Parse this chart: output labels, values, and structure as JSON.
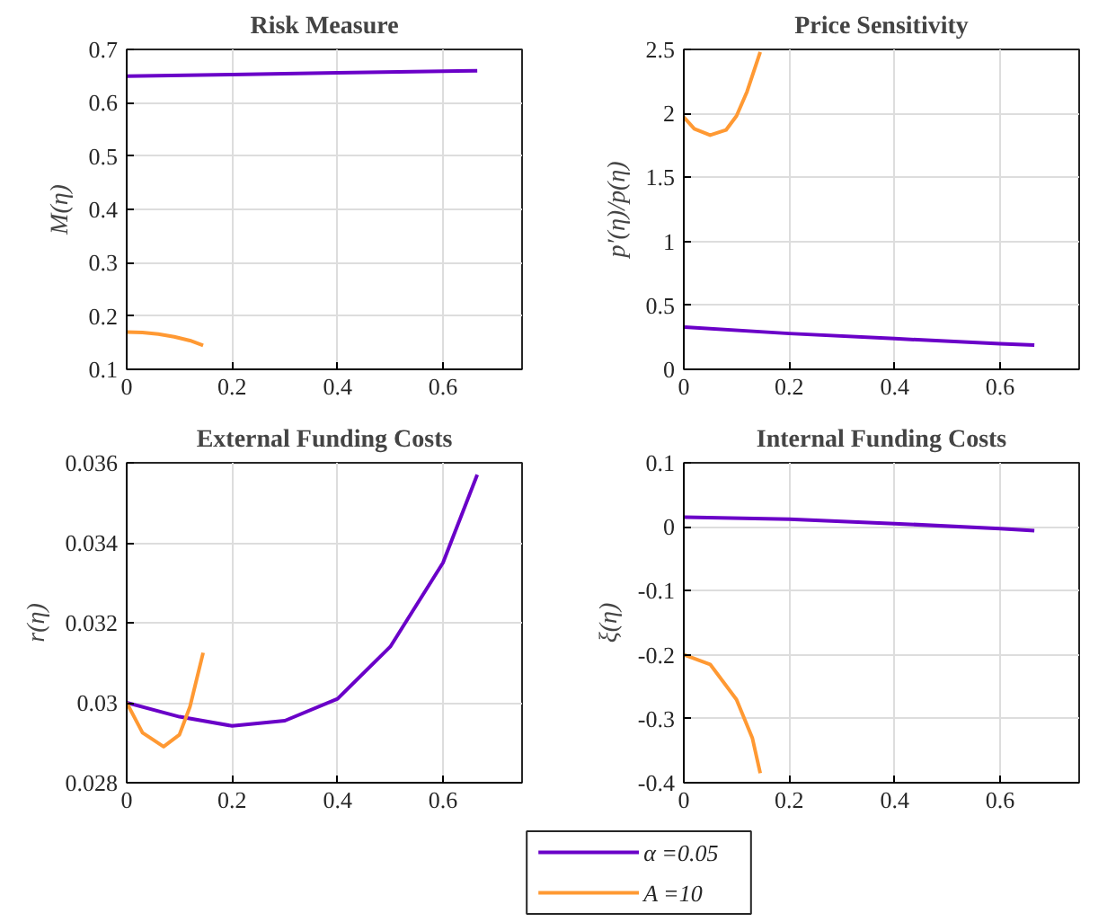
{
  "chart_data": [
    {
      "type": "line",
      "title": "Risk Measure",
      "ylabel": "M(η)",
      "xlim": [
        0,
        0.75
      ],
      "xticks": [
        0,
        0.2,
        0.4,
        0.6
      ],
      "ylim": [
        0.1,
        0.7
      ],
      "yticks": [
        0.1,
        0.2,
        0.3,
        0.4,
        0.5,
        0.6,
        0.7
      ],
      "grid": true,
      "series": [
        {
          "color": "#6a00c8",
          "x": [
            0,
            0.2,
            0.4,
            0.6,
            0.665
          ],
          "values": [
            0.65,
            0.653,
            0.656,
            0.659,
            0.66
          ]
        },
        {
          "color": "#ff9933",
          "x": [
            0,
            0.03,
            0.06,
            0.09,
            0.12,
            0.145
          ],
          "values": [
            0.17,
            0.169,
            0.166,
            0.161,
            0.154,
            0.145
          ]
        }
      ]
    },
    {
      "type": "line",
      "title": "Price Sensitivity",
      "ylabel": "p′(η)/p(η)",
      "xlim": [
        0,
        0.75
      ],
      "xticks": [
        0,
        0.2,
        0.4,
        0.6
      ],
      "ylim": [
        0,
        2.5
      ],
      "yticks": [
        0,
        0.5,
        1,
        1.5,
        2,
        2.5
      ],
      "grid": true,
      "series": [
        {
          "color": "#6a00c8",
          "x": [
            0,
            0.2,
            0.4,
            0.6,
            0.665
          ],
          "values": [
            0.33,
            0.28,
            0.24,
            0.2,
            0.19
          ]
        },
        {
          "color": "#ff9933",
          "x": [
            0,
            0.02,
            0.05,
            0.08,
            0.1,
            0.12,
            0.145
          ],
          "values": [
            1.97,
            1.88,
            1.83,
            1.87,
            1.98,
            2.17,
            2.48
          ]
        }
      ]
    },
    {
      "type": "line",
      "title": "External Funding Costs",
      "ylabel": "r(η)",
      "xlim": [
        0,
        0.75
      ],
      "xticks": [
        0,
        0.2,
        0.4,
        0.6
      ],
      "ylim": [
        0.028,
        0.036
      ],
      "yticks": [
        0.028,
        0.03,
        0.032,
        0.034,
        0.036
      ],
      "grid": true,
      "series": [
        {
          "color": "#6a00c8",
          "x": [
            0,
            0.1,
            0.2,
            0.3,
            0.4,
            0.5,
            0.6,
            0.665
          ],
          "values": [
            0.03,
            0.02965,
            0.02942,
            0.02955,
            0.0301,
            0.0314,
            0.0335,
            0.0357
          ]
        },
        {
          "color": "#ff9933",
          "x": [
            0,
            0.03,
            0.07,
            0.1,
            0.12,
            0.145
          ],
          "values": [
            0.03,
            0.02925,
            0.0289,
            0.0292,
            0.0299,
            0.03125
          ]
        }
      ]
    },
    {
      "type": "line",
      "title": "Internal Funding Costs",
      "ylabel": "ξ(η)",
      "xlim": [
        0,
        0.75
      ],
      "xticks": [
        0,
        0.2,
        0.4,
        0.6
      ],
      "ylim": [
        -0.4,
        0.1
      ],
      "yticks": [
        -0.4,
        -0.3,
        -0.2,
        -0.1,
        0,
        0.1
      ],
      "grid": true,
      "legend": "bottom",
      "series": [
        {
          "name": "α =0.05",
          "color": "#6a00c8",
          "x": [
            0,
            0.2,
            0.4,
            0.6,
            0.665
          ],
          "values": [
            0.015,
            0.012,
            0.005,
            -0.003,
            -0.006
          ]
        },
        {
          "name": "A =10",
          "color": "#ff9933",
          "x": [
            0,
            0.05,
            0.1,
            0.13,
            0.145
          ],
          "values": [
            -0.2,
            -0.215,
            -0.27,
            -0.33,
            -0.385
          ]
        }
      ]
    }
  ]
}
